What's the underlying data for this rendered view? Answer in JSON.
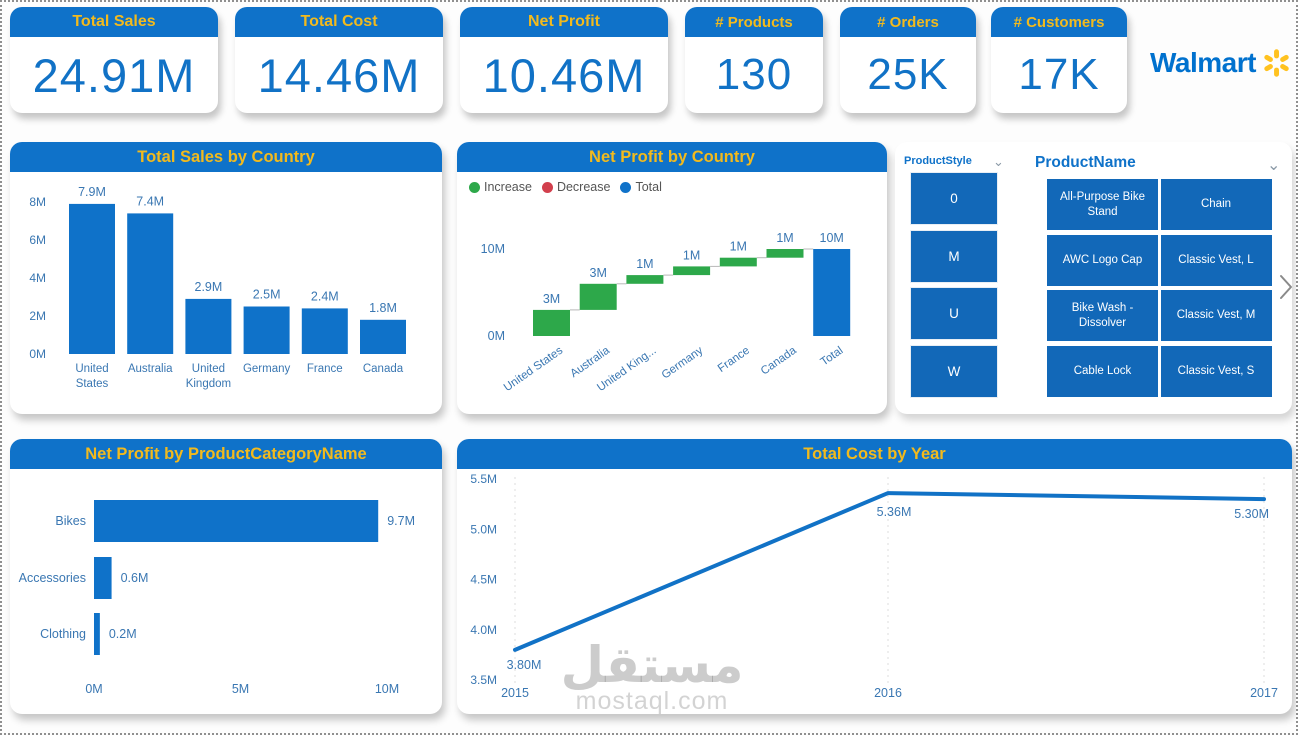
{
  "brand": {
    "name": "Walmart",
    "spark_icon": "walmart-spark"
  },
  "colors": {
    "header_blue": "#0f72c9",
    "tile_blue": "#1268b8",
    "title_yellow": "#f2ba1d",
    "value_blue": "#1172c6",
    "walmart_blue": "#0071ce",
    "walmart_yellow": "#ffc220",
    "increase_green": "#2da84a",
    "decrease_red": "#d23f4d",
    "axis_label_blue": "#3a77b2",
    "legend_text": "#555555",
    "connector_gray": "#b8b8b8",
    "watermark_gray": "#d5d5d5"
  },
  "kpis": [
    {
      "label": "Total Sales",
      "value": "24.91M"
    },
    {
      "label": "Total Cost",
      "value": "14.46M"
    },
    {
      "label": "Net Profit",
      "value": "10.46M"
    },
    {
      "label": "# Products",
      "value": "130"
    },
    {
      "label": "# Orders",
      "value": "25K"
    },
    {
      "label": "# Customers",
      "value": "17K"
    }
  ],
  "slicers": {
    "product_style": {
      "title": "ProductStyle",
      "options": [
        "0",
        "M",
        "U",
        "W"
      ]
    },
    "product_name": {
      "title": "ProductName",
      "rows": [
        [
          "All-Purpose Bike Stand",
          "Chain"
        ],
        [
          "AWC Logo Cap",
          "Classic Vest, L"
        ],
        [
          "Bike Wash - Dissolver",
          "Classic Vest, M"
        ],
        [
          "Cable Lock",
          "Classic Vest, S"
        ]
      ]
    }
  },
  "watermark": {
    "arabic": "مستقل",
    "latin": "mostaql.com"
  },
  "chart_data": [
    {
      "type": "bar",
      "title": "Total Sales by Country",
      "categories": [
        "United States",
        "Australia",
        "United Kingdom",
        "Germany",
        "France",
        "Canada"
      ],
      "values": [
        7.9,
        7.4,
        2.9,
        2.5,
        2.4,
        1.8
      ],
      "value_labels": [
        "7.9M",
        "7.4M",
        "2.9M",
        "2.5M",
        "2.4M",
        "1.8M"
      ],
      "ytick_values": [
        0,
        2,
        4,
        6,
        8
      ],
      "ytick_labels": [
        "0M",
        "2M",
        "4M",
        "6M",
        "8M"
      ],
      "ylim": [
        0,
        8.8
      ],
      "grid": false,
      "legend_position": "none"
    },
    {
      "type": "waterfall",
      "title": "Net Profit by Country",
      "categories": [
        "United States",
        "Australia",
        "United King...",
        "Germany",
        "France",
        "Canada",
        "Total"
      ],
      "values": [
        3,
        3,
        1,
        1,
        1,
        1,
        10
      ],
      "value_labels": [
        "3M",
        "3M",
        "1M",
        "1M",
        "1M",
        "1M",
        "10M"
      ],
      "total_index": 6,
      "legend": [
        {
          "label": "Increase",
          "color": "#2da84a"
        },
        {
          "label": "Decrease",
          "color": "#d23f4d"
        },
        {
          "label": "Total",
          "color": "#0f72c9"
        }
      ],
      "legend_position": "top-left",
      "ytick_values": [
        0,
        10
      ],
      "ytick_labels": [
        "0M",
        "10M"
      ],
      "ylim": [
        0,
        11.3
      ]
    },
    {
      "type": "bar_horizontal",
      "title": "Net Profit by ProductCategoryName",
      "categories": [
        "Bikes",
        "Accessories",
        "Clothing"
      ],
      "values": [
        9.7,
        0.6,
        0.2
      ],
      "value_labels": [
        "9.7M",
        "0.6M",
        "0.2M"
      ],
      "xtick_values": [
        0,
        5,
        10
      ],
      "xtick_labels": [
        "0M",
        "5M",
        "10M"
      ],
      "xlim": [
        0,
        11.9
      ],
      "grid": false
    },
    {
      "type": "line",
      "title": "Total Cost by Year",
      "x": [
        2015,
        2016,
        2017
      ],
      "values": [
        3.8,
        5.36,
        5.3
      ],
      "value_labels": [
        "3.80M",
        "5.36M",
        "5.30M"
      ],
      "ytick_values": [
        3.5,
        4.0,
        4.5,
        5.0,
        5.5
      ],
      "ytick_labels": [
        "3.5M",
        "4.0M",
        "4.5M",
        "5.0M",
        "5.5M"
      ],
      "ylim": [
        3.5,
        5.5
      ],
      "grid": "vertical-dashed"
    }
  ]
}
